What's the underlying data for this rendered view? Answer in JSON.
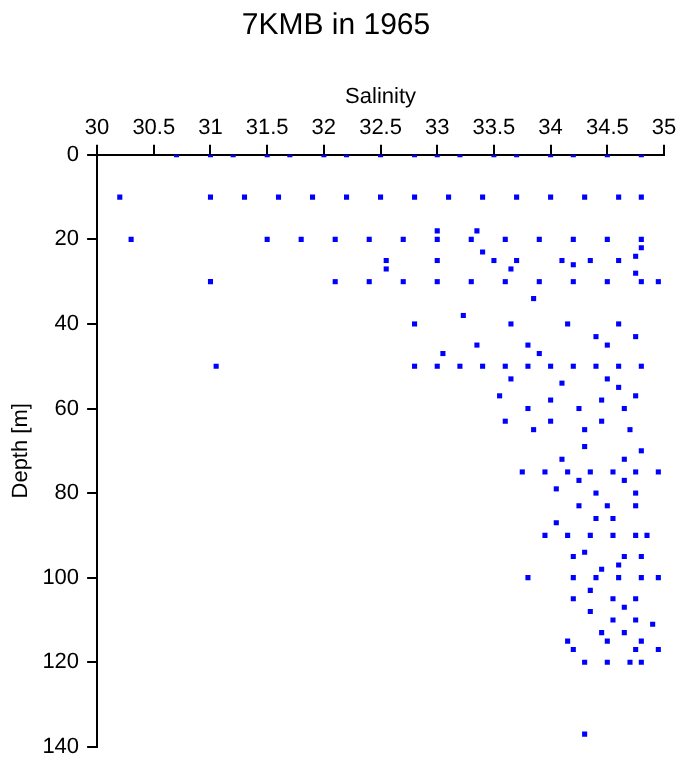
{
  "chart_data": {
    "type": "scatter",
    "title": "7KMB in 1965",
    "xlabel": "Salinity",
    "ylabel": "Depth [m]",
    "xlim": [
      30,
      35
    ],
    "xticks": [
      30,
      30.5,
      31,
      31.5,
      32,
      32.5,
      33,
      33.5,
      34,
      34.5,
      35
    ],
    "ylim": [
      140,
      0
    ],
    "yticks": [
      0,
      20,
      40,
      60,
      80,
      100,
      120,
      140
    ],
    "grid": false,
    "legend": false,
    "marker": "square",
    "series": [
      {
        "color": "#0000ff",
        "x": [
          30.7,
          31.0,
          31.2,
          31.5,
          31.7,
          32.0,
          32.2,
          32.5,
          32.8,
          33.0,
          33.2,
          33.5,
          33.7,
          34.0,
          34.2,
          34.5,
          34.8,
          30.2,
          31.0,
          31.3,
          31.6,
          31.9,
          32.2,
          32.5,
          32.8,
          33.1,
          33.4,
          33.7,
          34.0,
          34.3,
          34.6,
          34.8,
          30.3,
          31.5,
          31.8,
          32.1,
          32.4,
          32.7,
          33.0,
          33.3,
          33.6,
          33.9,
          34.2,
          34.5,
          34.8,
          31.0,
          32.1,
          32.4,
          32.7,
          33.0,
          33.3,
          33.6,
          33.9,
          34.2,
          34.5,
          34.8,
          34.95,
          33.0,
          33.35,
          32.55,
          32.55,
          33.0,
          33.4,
          33.5,
          33.7,
          34.1,
          34.35,
          34.6,
          34.75,
          33.65,
          34.2,
          34.75,
          34.8,
          33.85,
          33.23,
          32.8,
          33.65,
          34.15,
          34.6,
          34.75,
          34.4,
          33.35,
          33.8,
          34.5,
          33.05,
          33.9,
          31.05,
          32.8,
          33.0,
          33.2,
          33.4,
          33.6,
          33.8,
          34.0,
          34.2,
          34.4,
          34.6,
          34.8,
          33.65,
          34.1,
          34.5,
          34.6,
          33.55,
          34.0,
          34.45,
          34.75,
          33.8,
          34.25,
          34.65,
          33.6,
          34.0,
          34.45,
          33.85,
          34.3,
          34.7,
          34.3,
          34.1,
          34.65,
          34.8,
          33.75,
          33.95,
          34.15,
          34.35,
          34.55,
          34.75,
          34.95,
          34.25,
          34.65,
          34.05,
          34.4,
          34.75,
          34.25,
          34.75,
          34.5,
          34.4,
          34.55,
          34.05,
          33.95,
          34.15,
          34.35,
          34.55,
          34.75,
          34.85,
          34.2,
          34.3,
          34.65,
          34.8,
          33.8,
          34.6,
          34.45,
          34.2,
          34.4,
          34.6,
          34.8,
          34.95,
          34.35,
          34.2,
          34.55,
          34.75,
          34.65,
          34.35,
          34.55,
          34.75,
          34.9,
          34.45,
          34.65,
          34.15,
          34.5,
          34.8,
          34.95,
          34.2,
          34.75,
          34.3,
          34.5,
          34.7,
          34.8,
          34.3
        ],
        "values": [
          0,
          0,
          0,
          0,
          0,
          0,
          0,
          0,
          0,
          0,
          0,
          0,
          0,
          0,
          0,
          0,
          0,
          10,
          10,
          10,
          10,
          10,
          10,
          10,
          10,
          10,
          10,
          10,
          10,
          10,
          10,
          10,
          20,
          20,
          20,
          20,
          20,
          20,
          20,
          20,
          20,
          20,
          20,
          20,
          20,
          30,
          30,
          30,
          30,
          30,
          30,
          30,
          30,
          30,
          30,
          30,
          30,
          18,
          18,
          25,
          27,
          25,
          23,
          25,
          25,
          25,
          25,
          25,
          24,
          27,
          26,
          28,
          22,
          34,
          38,
          40,
          40,
          40,
          40,
          43,
          43,
          45,
          45,
          45,
          47,
          47,
          50,
          50,
          50,
          50,
          50,
          50,
          50,
          50,
          50,
          50,
          50,
          50,
          53,
          54,
          53,
          55,
          57,
          58,
          58,
          57,
          60,
          60,
          60,
          63,
          63,
          63,
          65,
          65,
          65,
          69,
          72,
          72,
          70,
          75,
          75,
          75,
          75,
          75,
          75,
          75,
          77,
          77,
          79,
          80,
          80,
          83,
          83,
          83,
          86,
          86,
          87,
          90,
          90,
          90,
          90,
          90,
          90,
          95,
          94,
          95,
          95,
          100,
          97,
          98,
          100,
          100,
          100,
          100,
          100,
          103,
          105,
          105,
          105,
          107,
          108,
          110,
          110,
          111,
          113,
          113,
          115,
          115,
          115,
          117,
          117,
          117,
          120,
          120,
          120,
          120,
          137
        ]
      }
    ]
  }
}
